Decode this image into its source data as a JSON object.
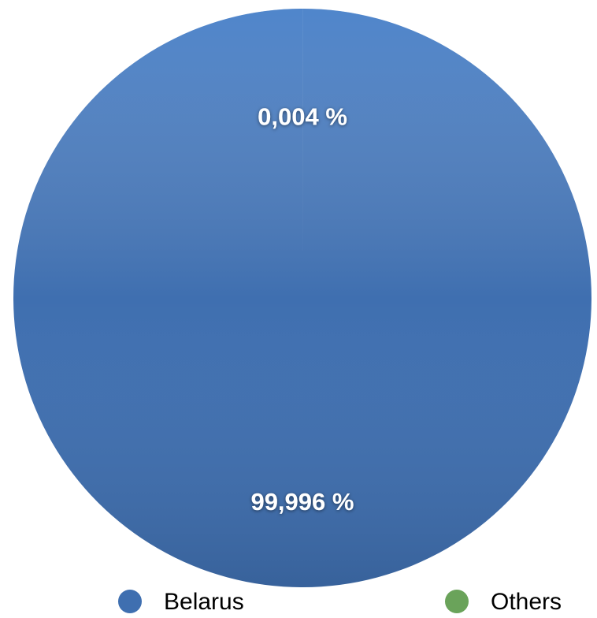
{
  "chart_data": {
    "type": "pie",
    "labels": [
      "Belarus",
      "Others"
    ],
    "values": [
      99.996,
      0.004
    ],
    "value_labels": [
      "99,996 %",
      "0,004 %"
    ],
    "colors": [
      "#3f6fb0",
      "#6aa35a"
    ]
  }
}
